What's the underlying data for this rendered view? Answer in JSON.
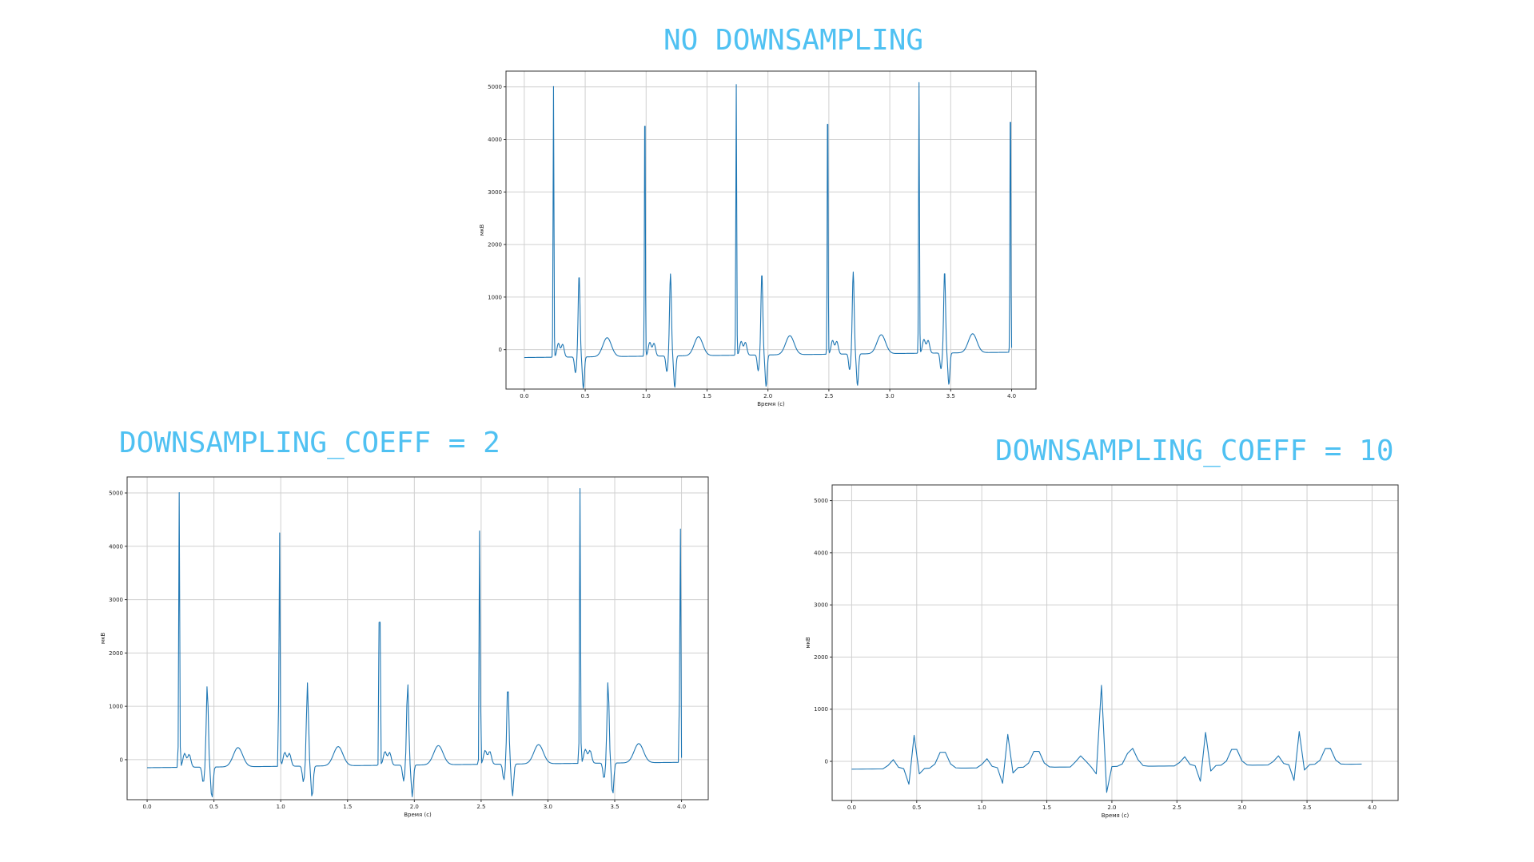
{
  "panels": [
    {
      "id": "top",
      "heading": "NO DOWNSAMPLING"
    },
    {
      "id": "left",
      "heading": "DOWNSAMPLING_COEFF = 2"
    },
    {
      "id": "right",
      "heading": "DOWNSAMPLING_COEFF = 10"
    }
  ],
  "colors": {
    "heading": "#4fc1f2",
    "line": "#1f77b4",
    "grid": "#d0d0d0"
  },
  "chart_data": [
    {
      "type": "line",
      "title": "",
      "xlabel": "Время (с)",
      "ylabel": "мкВ",
      "xlim": [
        -0.15,
        4.2
      ],
      "ylim": [
        -750,
        5300
      ],
      "xticks": [
        0.0,
        0.5,
        1.0,
        1.5,
        2.0,
        2.5,
        3.0,
        3.5,
        4.0
      ],
      "yticks": [
        0,
        1000,
        2000,
        3000,
        4000,
        5000
      ],
      "grid": true,
      "sampling_step": 0.004,
      "beat_times": [
        0.24,
        0.99,
        1.74,
        2.49,
        3.24
      ],
      "end_spike": 3.99,
      "x_range": [
        0.0,
        4.0
      ]
    },
    {
      "type": "line",
      "title": "",
      "xlabel": "Время (с)",
      "ylabel": "мкВ",
      "xlim": [
        -0.15,
        4.2
      ],
      "ylim": [
        -750,
        5300
      ],
      "xticks": [
        0.0,
        0.5,
        1.0,
        1.5,
        2.0,
        2.5,
        3.0,
        3.5,
        4.0
      ],
      "yticks": [
        0,
        1000,
        2000,
        3000,
        4000,
        5000
      ],
      "grid": true,
      "sampling_step": 0.008,
      "beat_times": [
        0.24,
        0.99,
        1.74,
        2.49,
        3.24
      ],
      "end_spike": 3.99,
      "x_range": [
        0.0,
        4.0
      ]
    },
    {
      "type": "line",
      "title": "",
      "xlabel": "Время (с)",
      "ylabel": "мкВ",
      "xlim": [
        -0.15,
        4.2
      ],
      "ylim": [
        -750,
        5300
      ],
      "xticks": [
        0.0,
        0.5,
        1.0,
        1.5,
        2.0,
        2.5,
        3.0,
        3.5,
        4.0
      ],
      "yticks": [
        0,
        1000,
        2000,
        3000,
        4000,
        5000
      ],
      "grid": true,
      "sampling_step": 0.04,
      "beat_times": [
        0.26,
        0.98,
        1.71,
        2.5,
        3.22
      ],
      "end_spike": 3.95,
      "x_range": [
        0.0,
        3.95
      ]
    }
  ]
}
